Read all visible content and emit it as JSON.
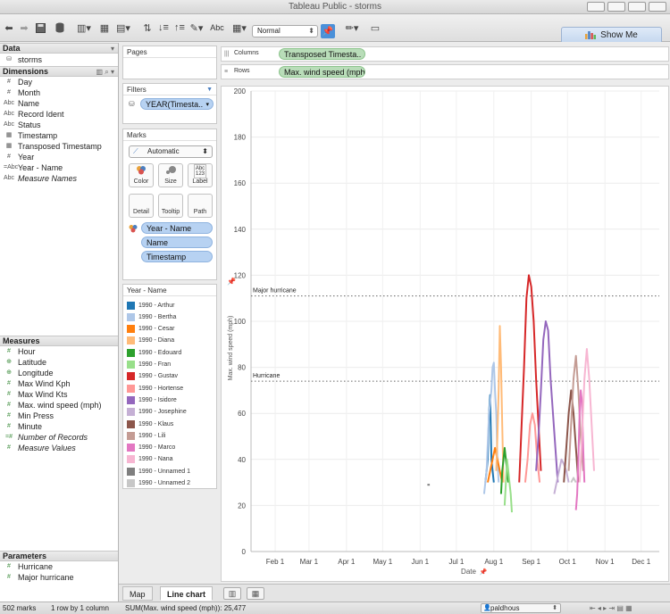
{
  "window": {
    "title": "Tableau Public - storms"
  },
  "toolbar": {
    "abc_label": "Abc",
    "fit_select": "Normal",
    "show_me": "Show Me"
  },
  "data_pane": {
    "header": "Data",
    "datasource": "storms",
    "dimensions_header": "Dimensions",
    "dimensions": [
      {
        "icon": "#",
        "label": "Day",
        "italic": false
      },
      {
        "icon": "#",
        "label": "Month",
        "italic": false
      },
      {
        "icon": "Abc",
        "label": "Name",
        "italic": false
      },
      {
        "icon": "Abc",
        "label": "Record Ident",
        "italic": false
      },
      {
        "icon": "Abc",
        "label": "Status",
        "italic": false
      },
      {
        "icon": "cal",
        "label": "Timestamp",
        "italic": false
      },
      {
        "icon": "cal",
        "label": "Transposed Timestamp",
        "italic": false
      },
      {
        "icon": "#",
        "label": "Year",
        "italic": false
      },
      {
        "icon": "=Abc",
        "label": "Year - Name",
        "italic": false
      },
      {
        "icon": "Abc",
        "label": "Measure Names",
        "italic": true
      }
    ],
    "measures_header": "Measures",
    "measures": [
      {
        "icon": "#",
        "label": "Hour",
        "italic": false
      },
      {
        "icon": "globe",
        "label": "Latitude",
        "italic": false
      },
      {
        "icon": "globe",
        "label": "Longitude",
        "italic": false
      },
      {
        "icon": "#",
        "label": "Max Wind Kph",
        "italic": false
      },
      {
        "icon": "#",
        "label": "Max Wind Kts",
        "italic": false
      },
      {
        "icon": "#",
        "label": "Max. wind speed (mph)",
        "italic": false
      },
      {
        "icon": "#",
        "label": "Min Press",
        "italic": false
      },
      {
        "icon": "#",
        "label": "Minute",
        "italic": false
      },
      {
        "icon": "=#",
        "label": "Number of Records",
        "italic": true
      },
      {
        "icon": "#",
        "label": "Measure Values",
        "italic": true
      }
    ],
    "parameters_header": "Parameters",
    "parameters": [
      {
        "icon": "#",
        "label": "Hurricane"
      },
      {
        "icon": "#",
        "label": "Major hurricane"
      }
    ]
  },
  "pages_card": {
    "title": "Pages"
  },
  "filters_card": {
    "title": "Filters",
    "pill": "YEAR(Timesta.."
  },
  "marks_card": {
    "title": "Marks",
    "mark_type": "Automatic",
    "buttons": [
      "Color",
      "Size",
      "Label",
      "Detail",
      "Tooltip",
      "Path"
    ],
    "label_icon_text": "Abc\n123",
    "pills": [
      "Year - Name",
      "Name",
      "Timestamp"
    ]
  },
  "legend": {
    "title": "Year - Name",
    "items": [
      {
        "label": "1990 - Arthur",
        "color": "#1f77b4"
      },
      {
        "label": "1990 - Bertha",
        "color": "#aec7e8"
      },
      {
        "label": "1990 - Cesar",
        "color": "#ff7f0e"
      },
      {
        "label": "1990 - Diana",
        "color": "#ffbb78"
      },
      {
        "label": "1990 - Edouard",
        "color": "#2ca02c"
      },
      {
        "label": "1990 - Fran",
        "color": "#98df8a"
      },
      {
        "label": "1990 - Gustav",
        "color": "#d62728"
      },
      {
        "label": "1990 - Hortense",
        "color": "#ff9896"
      },
      {
        "label": "1990 - Isidore",
        "color": "#9467bd"
      },
      {
        "label": "1990 - Josephine",
        "color": "#c5b0d5"
      },
      {
        "label": "1990 - Klaus",
        "color": "#8c564b"
      },
      {
        "label": "1990 - Lili",
        "color": "#c49c94"
      },
      {
        "label": "1990 - Marco",
        "color": "#e377c2"
      },
      {
        "label": "1990 - Nana",
        "color": "#f7b6d2"
      },
      {
        "label": "1990 - Unnamed 1",
        "color": "#7f7f7f"
      },
      {
        "label": "1990 - Unnamed 2",
        "color": "#c7c7c7"
      }
    ]
  },
  "shelves": {
    "columns_label": "Columns",
    "columns_pill": "Transposed Timesta..",
    "rows_label": "Rows",
    "rows_pill": "Max. wind speed (mph).."
  },
  "chart_data": {
    "type": "line",
    "ylabel": "Max. wind speed (mph)",
    "xlabel": "Date",
    "ylim": [
      0,
      200
    ],
    "y_ticks": [
      0,
      20,
      40,
      60,
      80,
      100,
      120,
      140,
      160,
      180,
      200
    ],
    "x_ticks": [
      "Feb 1",
      "Mar 1",
      "Apr 1",
      "May 1",
      "Jun 1",
      "Jul 1",
      "Aug 1",
      "Sep 1",
      "Oct 1",
      "Nov 1",
      "Dec 1"
    ],
    "x_tick_days": [
      31,
      59,
      90,
      120,
      151,
      181,
      212,
      243,
      273,
      304,
      334
    ],
    "xlim_days": [
      11,
      349
    ],
    "reference_lines": [
      {
        "label": "Major hurricane",
        "value": 111
      },
      {
        "label": "Hurricane",
        "value": 74
      }
    ],
    "series": [
      {
        "name": "1990 - Arthur",
        "color": "#1f77b4",
        "points": [
          [
            205,
            30
          ],
          [
            206,
            35
          ],
          [
            207,
            40
          ],
          [
            208,
            60
          ],
          [
            209,
            68
          ],
          [
            210,
            40
          ],
          [
            211,
            35
          ],
          [
            212,
            30
          ]
        ]
      },
      {
        "name": "1990 - Bertha",
        "color": "#aec7e8",
        "points": [
          [
            204,
            25
          ],
          [
            206,
            35
          ],
          [
            208,
            60
          ],
          [
            210,
            70
          ],
          [
            211,
            80
          ],
          [
            212,
            82
          ],
          [
            213,
            70
          ],
          [
            214,
            60
          ],
          [
            215,
            40
          ],
          [
            216,
            30
          ]
        ]
      },
      {
        "name": "1990 - Cesar",
        "color": "#ff7f0e",
        "points": [
          [
            207,
            30
          ],
          [
            209,
            35
          ],
          [
            211,
            40
          ],
          [
            213,
            45
          ],
          [
            215,
            40
          ],
          [
            217,
            35
          ],
          [
            219,
            30
          ]
        ]
      },
      {
        "name": "1990 - Diana",
        "color": "#ffbb78",
        "points": [
          [
            214,
            35
          ],
          [
            215,
            50
          ],
          [
            216,
            70
          ],
          [
            217,
            98
          ],
          [
            218,
            80
          ],
          [
            219,
            55
          ],
          [
            220,
            30
          ]
        ]
      },
      {
        "name": "1990 - Edouard",
        "color": "#2ca02c",
        "points": [
          [
            218,
            25
          ],
          [
            219,
            35
          ],
          [
            220,
            40
          ],
          [
            221,
            45
          ],
          [
            222,
            40
          ],
          [
            223,
            35
          ],
          [
            224,
            30
          ]
        ]
      },
      {
        "name": "1990 - Fran",
        "color": "#98df8a",
        "points": [
          [
            221,
            20
          ],
          [
            222,
            30
          ],
          [
            223,
            40
          ],
          [
            224,
            35
          ],
          [
            225,
            30
          ],
          [
            226,
            25
          ],
          [
            227,
            17
          ]
        ]
      },
      {
        "name": "1990 - Gustav",
        "color": "#d62728",
        "points": [
          [
            233,
            30
          ],
          [
            235,
            55
          ],
          [
            237,
            80
          ],
          [
            239,
            110
          ],
          [
            241,
            120
          ],
          [
            243,
            115
          ],
          [
            245,
            100
          ],
          [
            247,
            75
          ],
          [
            249,
            55
          ],
          [
            251,
            35
          ]
        ]
      },
      {
        "name": "1990 - Hortense",
        "color": "#ff9896",
        "points": [
          [
            238,
            30
          ],
          [
            240,
            40
          ],
          [
            242,
            55
          ],
          [
            244,
            60
          ],
          [
            246,
            55
          ],
          [
            248,
            40
          ],
          [
            250,
            30
          ]
        ]
      },
      {
        "name": "1990 - Isidore",
        "color": "#9467bd",
        "points": [
          [
            247,
            35
          ],
          [
            249,
            50
          ],
          [
            251,
            70
          ],
          [
            253,
            92
          ],
          [
            255,
            100
          ],
          [
            257,
            96
          ],
          [
            259,
            75
          ],
          [
            261,
            60
          ],
          [
            263,
            45
          ],
          [
            265,
            30
          ]
        ]
      },
      {
        "name": "1990 - Josephine",
        "color": "#c5b0d5",
        "points": [
          [
            262,
            25
          ],
          [
            264,
            30
          ],
          [
            266,
            35
          ],
          [
            268,
            40
          ],
          [
            270,
            38
          ],
          [
            272,
            35
          ],
          [
            274,
            30
          ]
        ]
      },
      {
        "name": "1990 - Klaus",
        "color": "#8c564b",
        "points": [
          [
            270,
            30
          ],
          [
            272,
            45
          ],
          [
            274,
            60
          ],
          [
            276,
            70
          ],
          [
            278,
            60
          ],
          [
            280,
            45
          ],
          [
            282,
            30
          ]
        ]
      },
      {
        "name": "1990 - Lili",
        "color": "#c49c94",
        "points": [
          [
            274,
            35
          ],
          [
            276,
            55
          ],
          [
            278,
            75
          ],
          [
            280,
            85
          ],
          [
            282,
            70
          ],
          [
            284,
            50
          ],
          [
            286,
            35
          ]
        ]
      },
      {
        "name": "1990 - Marco",
        "color": "#e377c2",
        "points": [
          [
            280,
            18
          ],
          [
            281,
            25
          ],
          [
            282,
            40
          ],
          [
            283,
            60
          ],
          [
            284,
            70
          ],
          [
            285,
            65
          ],
          [
            286,
            45
          ],
          [
            287,
            30
          ]
        ]
      },
      {
        "name": "1990 - Nana",
        "color": "#f7b6d2",
        "points": [
          [
            283,
            30
          ],
          [
            285,
            50
          ],
          [
            287,
            75
          ],
          [
            289,
            88
          ],
          [
            291,
            75
          ],
          [
            293,
            55
          ],
          [
            295,
            35
          ]
        ]
      },
      {
        "name": "1990 - Unnamed 1",
        "color": "#7f7f7f",
        "points": [
          [
            157,
            29
          ],
          [
            159,
            29
          ]
        ]
      },
      {
        "name": "1990 - Unnamed 2",
        "color": "#c7c7c7",
        "points": [
          [
            276,
            30
          ],
          [
            278,
            32
          ],
          [
            280,
            30
          ]
        ]
      }
    ]
  },
  "sheet_tabs": [
    "Map",
    "Line chart"
  ],
  "status": {
    "marks": "502 marks",
    "rows_cols": "1 row by 1 column",
    "sum": "SUM(Max. wind speed (mph)): 25,477",
    "user": "paldhous"
  }
}
